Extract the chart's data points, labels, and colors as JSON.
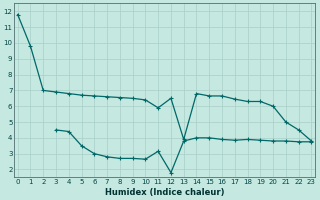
{
  "xlabel": "Humidex (Indice chaleur)",
  "bg_color": "#c5e8e0",
  "grid_color": "#a8cfc8",
  "line_color": "#006868",
  "line1_x": [
    0,
    1,
    2,
    3,
    4,
    5,
    6,
    7,
    8,
    9,
    10,
    11,
    12,
    13,
    14,
    15,
    16,
    17,
    18,
    19,
    20,
    21,
    22,
    23
  ],
  "line1_y": [
    11.8,
    9.8,
    7.0,
    6.9,
    6.8,
    6.7,
    6.65,
    6.6,
    6.55,
    6.5,
    6.4,
    5.9,
    6.5,
    3.9,
    6.8,
    6.65,
    6.65,
    6.45,
    6.3,
    6.3,
    6.0,
    5.0,
    4.5,
    3.8
  ],
  "line2_x": [
    3,
    4,
    5,
    6,
    7,
    8,
    9,
    10,
    11,
    12,
    13,
    14,
    15,
    16,
    17,
    18,
    19,
    20,
    21,
    22,
    23
  ],
  "line2_y": [
    4.5,
    4.4,
    3.5,
    3.0,
    2.8,
    2.7,
    2.7,
    2.65,
    3.15,
    1.8,
    3.8,
    4.0,
    4.0,
    3.9,
    3.85,
    3.9,
    3.85,
    3.8,
    3.8,
    3.75,
    3.75
  ],
  "xlim": [
    -0.3,
    23.3
  ],
  "ylim": [
    1.5,
    12.5
  ],
  "xticks": [
    0,
    1,
    2,
    3,
    4,
    5,
    6,
    7,
    8,
    9,
    10,
    11,
    12,
    13,
    14,
    15,
    16,
    17,
    18,
    19,
    20,
    21,
    22,
    23
  ],
  "yticks": [
    2,
    3,
    4,
    5,
    6,
    7,
    8,
    9,
    10,
    11,
    12
  ],
  "xlabel_fontsize": 6,
  "tick_fontsize": 5
}
